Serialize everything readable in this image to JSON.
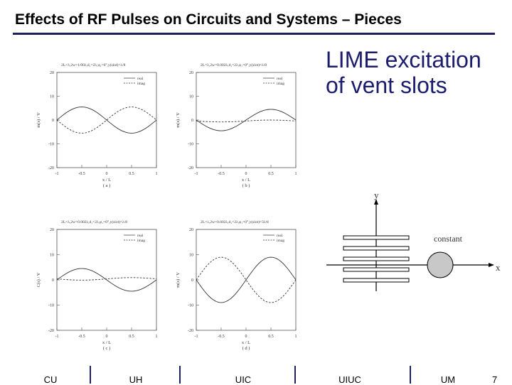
{
  "title": "Effects of RF Pulses on Circuits and Systems – Pieces",
  "side_text": [
    "LIME excitation",
    "of vent slots"
  ],
  "plots": [
    {
      "caption": "2L=λ,2w=1/00λ,d₁=2λ,φ₁=0°,y(slot)=λ/8",
      "ylabel": "m(s) / V",
      "xlabel": "x / L",
      "panel": "( a )",
      "legend": [
        "real",
        "imag"
      ],
      "xticks": [
        "-1",
        "-0.5",
        "0",
        "0.5",
        "1"
      ],
      "yticks": [
        "20",
        "10",
        "0",
        "-10",
        "-20"
      ],
      "xlim": [
        -1,
        1
      ],
      "ylim": [
        -20,
        20
      ],
      "series": [
        {
          "name": "real",
          "style": "solid",
          "amp": -5.5,
          "k": 1,
          "phase": 0,
          "offset": 0
        },
        {
          "name": "imag",
          "style": "dashed",
          "amp": 5.5,
          "k": 1,
          "phase": 0,
          "offset": 0
        }
      ]
    },
    {
      "caption": "2L=λ,2w=0.002λ,d₁=2λ,φ₁=0°,y(slot)=λ/8",
      "ylabel": "m(s) / V",
      "xlabel": "x / L",
      "panel": "( b )",
      "legend": [
        "real",
        "imag"
      ],
      "xticks": [
        "-1",
        "-0.5",
        "0",
        "0.5",
        "1"
      ],
      "yticks": [
        "20",
        "10",
        "0",
        "-10",
        "-20"
      ],
      "xlim": [
        -1,
        1
      ],
      "ylim": [
        -20,
        20
      ],
      "series": [
        {
          "name": "real",
          "style": "solid",
          "amp": 4.5,
          "k": 1,
          "phase": 0,
          "offset": 0
        },
        {
          "name": "imag",
          "style": "dashed",
          "amp": 0.4,
          "k": 1,
          "phase": 0,
          "offset": -0.4
        }
      ]
    },
    {
      "caption": "2L=λ,2w=0.002λ,d₁=2λ,φ₁=0°,y(slot)=λ/8",
      "ylabel": "C(s) / V",
      "xlabel": "x / L",
      "panel": "( c )",
      "legend": [
        "real",
        "imag"
      ],
      "xticks": [
        "-1",
        "-0.5",
        "0",
        "0.5",
        "1"
      ],
      "yticks": [
        "20",
        "10",
        "0",
        "-10",
        "-20"
      ],
      "xlim": [
        -1,
        1
      ],
      "ylim": [
        -20,
        20
      ],
      "series": [
        {
          "name": "real",
          "style": "solid",
          "amp": -4.5,
          "k": 1,
          "phase": 0,
          "offset": 0
        },
        {
          "name": "imag",
          "style": "dashed",
          "amp": 0.5,
          "k": 1,
          "phase": 0,
          "offset": 0.4
        }
      ]
    },
    {
      "caption": "2L=λ,2w=0.002λ,d₁=2λ,φ₁=0°,y(slot)=3λ/8",
      "ylabel": "m(s) / V",
      "xlabel": "x / L",
      "panel": "( d )",
      "legend": [
        "real",
        "imag"
      ],
      "xticks": [
        "-1",
        "-0.5",
        "0",
        "0.5",
        "1"
      ],
      "yticks": [
        "20",
        "10",
        "0",
        "-10",
        "-20"
      ],
      "xlim": [
        -1,
        1
      ],
      "ylim": [
        -20,
        20
      ],
      "series": [
        {
          "name": "real",
          "style": "solid",
          "amp": 9,
          "k": 1,
          "phase": 0,
          "offset": 0
        },
        {
          "name": "imag",
          "style": "dashed",
          "amp": -9,
          "k": 1,
          "phase": 0,
          "offset": 0
        }
      ]
    }
  ],
  "diagram": {
    "y_label": "y",
    "x_label": "x",
    "source_label": "constant",
    "slot_count": 5,
    "source_color": "#c8c8c8"
  },
  "footer": {
    "labels": [
      "CU",
      "UH",
      "UIC",
      "UIUC",
      "UM"
    ],
    "page_number": "7"
  },
  "colors": {
    "title_rule": "#1f1f5c",
    "side_text": "#1c1c6e"
  }
}
